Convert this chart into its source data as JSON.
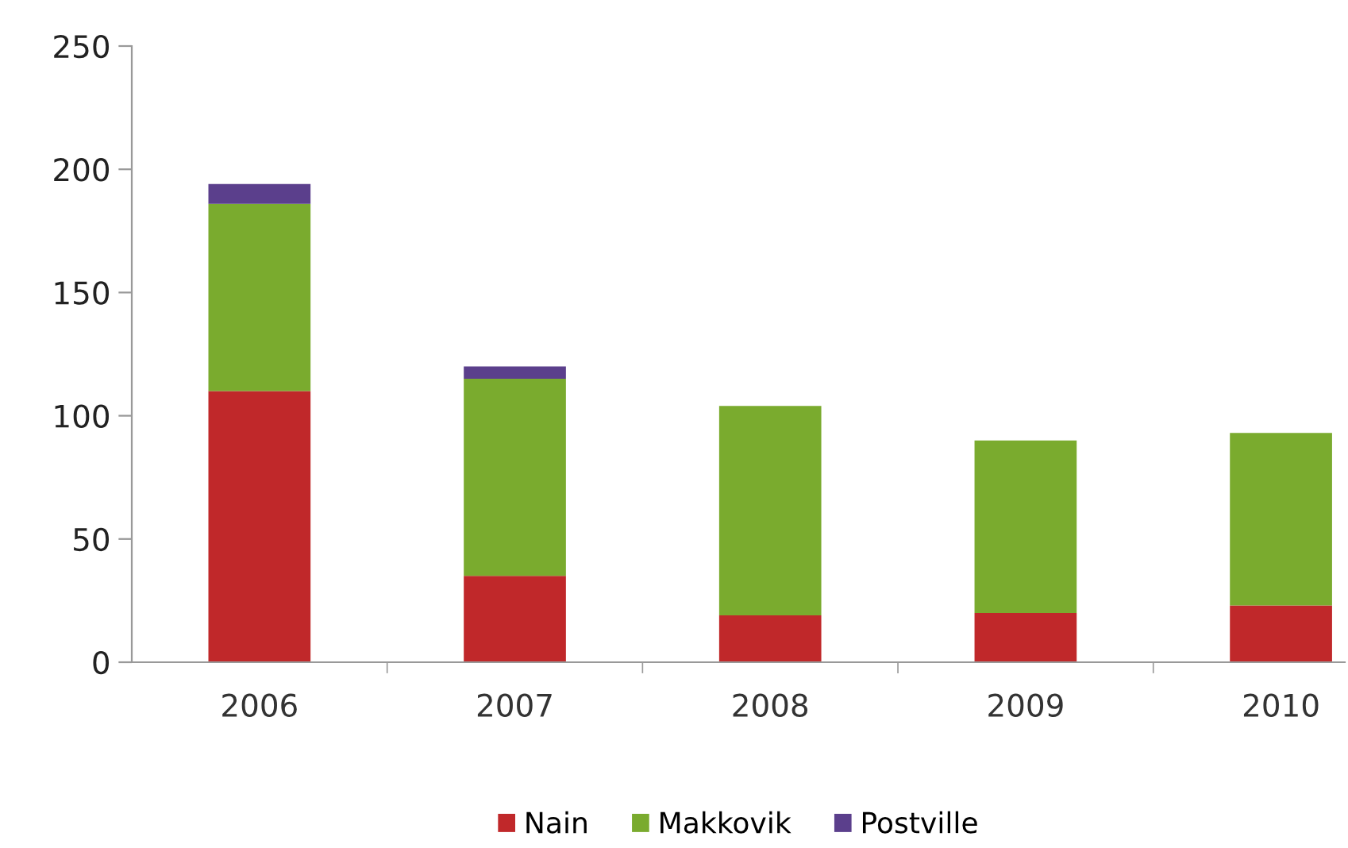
{
  "chart_data": {
    "type": "bar",
    "stacked": true,
    "categories": [
      "2006",
      "2007",
      "2008",
      "2009",
      "2010"
    ],
    "series": [
      {
        "name": "Nain",
        "color": "#c0282a",
        "values": [
          110,
          35,
          19,
          20,
          23
        ]
      },
      {
        "name": "Makkovik",
        "color": "#7aab2e",
        "values": [
          76,
          80,
          85,
          70,
          70
        ]
      },
      {
        "name": "Postville",
        "color": "#5b3f8c",
        "values": [
          8,
          5,
          0,
          0,
          0
        ]
      }
    ],
    "ylim": [
      0,
      250
    ],
    "yticks": [
      0,
      50,
      100,
      150,
      200,
      250
    ],
    "grid": false,
    "legend": "bottom"
  }
}
